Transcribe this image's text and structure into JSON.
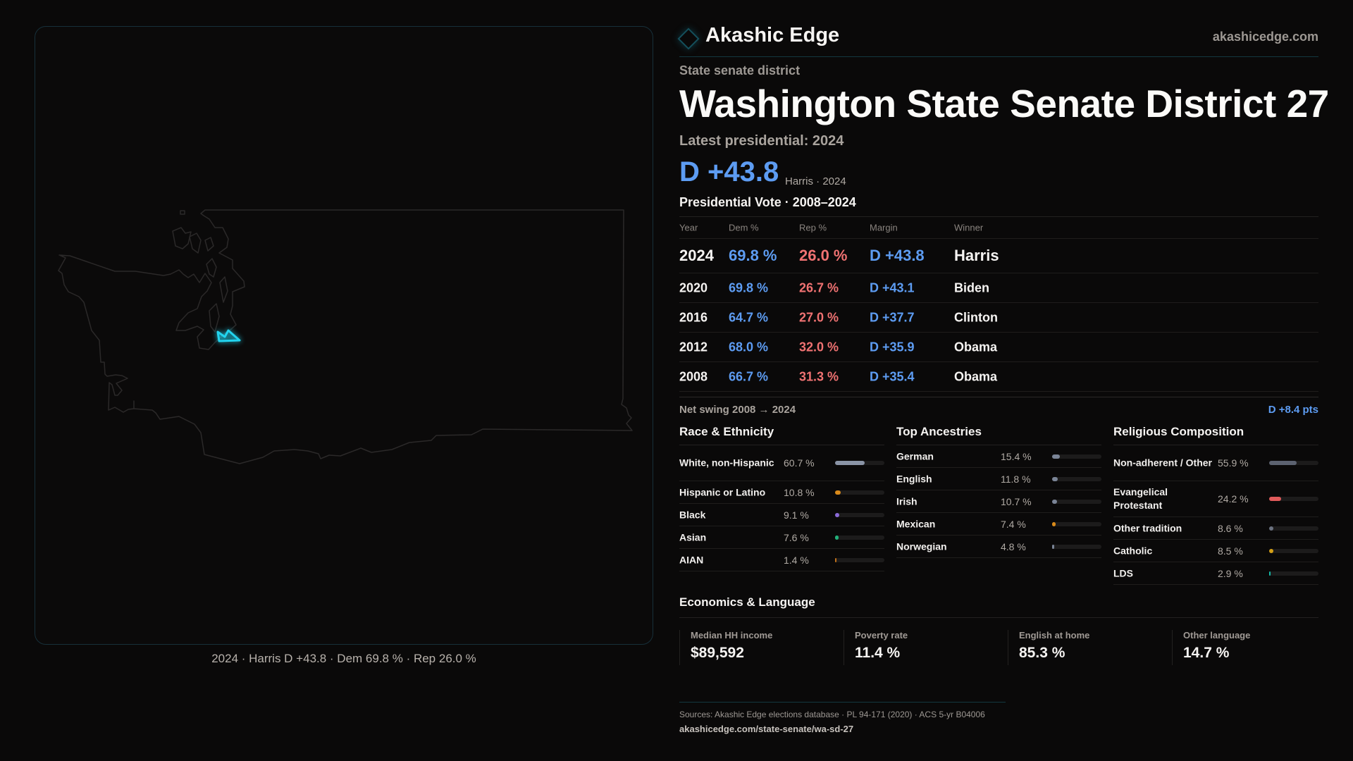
{
  "brand": {
    "name": "Akashic Edge",
    "site": "akashicedge.com"
  },
  "kicker": "State senate district",
  "title": "Washington State Senate District 27",
  "latest_label": "Latest presidential: 2024",
  "headline_margin": "D +43.8",
  "headline_sub": "Harris · 2024",
  "vote_section_title": "Presidential Vote · 2008–2024",
  "vote_table": {
    "columns": [
      "Year",
      "Dem %",
      "Rep %",
      "Margin",
      "Winner"
    ],
    "rows": [
      {
        "year": "2024",
        "dem": "69.8 %",
        "rep": "26.0 %",
        "margin": "D +43.8",
        "winner": "Harris"
      },
      {
        "year": "2020",
        "dem": "69.8 %",
        "rep": "26.7 %",
        "margin": "D +43.1",
        "winner": "Biden"
      },
      {
        "year": "2016",
        "dem": "64.7 %",
        "rep": "27.0 %",
        "margin": "D +37.7",
        "winner": "Clinton"
      },
      {
        "year": "2012",
        "dem": "68.0 %",
        "rep": "32.0 %",
        "margin": "D +35.9",
        "winner": "Obama"
      },
      {
        "year": "2008",
        "dem": "66.7 %",
        "rep": "31.3 %",
        "margin": "D +35.4",
        "winner": "Obama"
      }
    ]
  },
  "net_swing": {
    "label": "Net swing 2008 → 2024",
    "value": "D +8.4 pts"
  },
  "demographics": [
    {
      "title": "Race & Ethnicity",
      "items": [
        {
          "label": "White, non-Hispanic",
          "value": "60.7 %",
          "pct": 60.7,
          "color": "#8a94a6",
          "two": true
        },
        {
          "label": "Hispanic or Latino",
          "value": "10.8 %",
          "pct": 10.8,
          "color": "#d98a1a"
        },
        {
          "label": "Black",
          "value": "9.1 %",
          "pct": 9.1,
          "color": "#8b6ad8"
        },
        {
          "label": "Asian",
          "value": "7.6 %",
          "pct": 7.6,
          "color": "#22b07a"
        },
        {
          "label": "AIAN",
          "value": "1.4 %",
          "pct": 1.4,
          "color": "#c0701a"
        }
      ]
    },
    {
      "title": "Top Ancestries",
      "items": [
        {
          "label": "German",
          "value": "15.4 %",
          "pct": 15.4,
          "color": "#7a8496"
        },
        {
          "label": "English",
          "value": "11.8 %",
          "pct": 11.8,
          "color": "#7a8496"
        },
        {
          "label": "Irish",
          "value": "10.7 %",
          "pct": 10.7,
          "color": "#7a8496"
        },
        {
          "label": "Mexican",
          "value": "7.4 %",
          "pct": 7.4,
          "color": "#d98a1a"
        },
        {
          "label": "Norwegian",
          "value": "4.8 %",
          "pct": 4.8,
          "color": "#7a8496"
        }
      ]
    },
    {
      "title": "Religious Composition",
      "items": [
        {
          "label": "Non-adherent / Other",
          "value": "55.9 %",
          "pct": 55.9,
          "color": "#5c6270",
          "two": true
        },
        {
          "label": "Evangelical Protestant",
          "value": "24.2 %",
          "pct": 24.2,
          "color": "#e05a5a",
          "two": true
        },
        {
          "label": "Other tradition",
          "value": "8.6 %",
          "pct": 8.6,
          "color": "#6b7280"
        },
        {
          "label": "Catholic",
          "value": "8.5 %",
          "pct": 8.5,
          "color": "#d4a017"
        },
        {
          "label": "LDS",
          "value": "2.9 %",
          "pct": 2.9,
          "color": "#14b8a6"
        }
      ]
    }
  ],
  "economics": {
    "title": "Economics & Language",
    "cards": [
      {
        "label": "Median HH income",
        "value": "$89,592"
      },
      {
        "label": "Poverty rate",
        "value": "11.4 %"
      },
      {
        "label": "English at home",
        "value": "85.3 %"
      },
      {
        "label": "Other language",
        "value": "14.7 %"
      }
    ]
  },
  "map": {
    "caption": "2024 · Harris D +43.8 · Dem 69.8 % · Rep 26.0 %",
    "highlight_color": "#22d3ee",
    "outline_color": "#2b2929"
  },
  "footer": {
    "sources": "Sources: Akashic Edge elections database · PL 94-171 (2020) · ACS 5-yr B04006",
    "url": "akashicedge.com/state-senate/wa-sd-27"
  },
  "colors": {
    "dem": "#5d9cf2",
    "rep": "#f07272",
    "background": "#0a0909"
  }
}
